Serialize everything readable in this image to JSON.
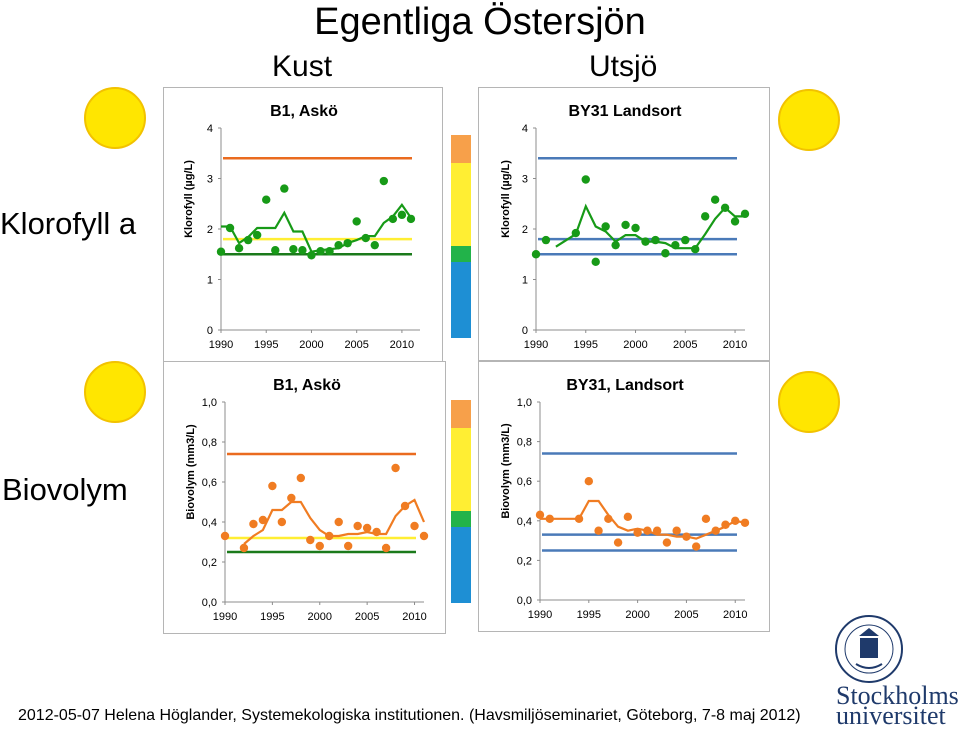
{
  "title": "Egentliga Östersjön",
  "coast_label": "Kust",
  "offshore_label": "Utsjö",
  "rows": {
    "chlorophyll": "Klorofyll a",
    "biovolume": "Biovolym"
  },
  "status_scale_colors": [
    "#f7a04a",
    "#ffee33",
    "#ffee33",
    "#22b34a",
    "#1e8fd4"
  ],
  "footer_text": "2012-05-07 Helena Höglander, Systemekologiska institutionen. (Havsmiljöseminariet, Göteborg, 7-8 maj 2012)",
  "logo": {
    "line1": "Stockholms",
    "line2": "universitet"
  },
  "chart_data": [
    {
      "type": "scatter",
      "title": "B1, Askö",
      "ylabel": "Klorofyll (µg/L)",
      "xlabel": "",
      "xlim": [
        1990,
        2012
      ],
      "ylim": [
        0,
        4
      ],
      "xticks": [
        "1990",
        "1995",
        "2000",
        "2005",
        "2010"
      ],
      "yticks": [
        "0",
        "1",
        "2",
        "3",
        "4"
      ],
      "points_color": "#179a17",
      "points": [
        [
          1990,
          1.55
        ],
        [
          1991,
          2.02
        ],
        [
          1992,
          1.62
        ],
        [
          1993,
          1.78
        ],
        [
          1994,
          1.88
        ],
        [
          1995,
          2.58
        ],
        [
          1996,
          1.58
        ],
        [
          1997,
          2.8
        ],
        [
          1998,
          1.6
        ],
        [
          1999,
          1.58
        ],
        [
          2000,
          1.48
        ],
        [
          2001,
          1.56
        ],
        [
          2002,
          1.56
        ],
        [
          2003,
          1.68
        ],
        [
          2004,
          1.72
        ],
        [
          2005,
          2.15
        ],
        [
          2006,
          1.82
        ],
        [
          2007,
          1.68
        ],
        [
          2008,
          2.95
        ],
        [
          2009,
          2.2
        ],
        [
          2010,
          2.28
        ],
        [
          2011,
          2.2
        ]
      ],
      "trend_color": "#179a17",
      "trend": [
        [
          1990,
          2.05
        ],
        [
          1991,
          2.05
        ],
        [
          1992,
          1.72
        ],
        [
          1993,
          1.84
        ],
        [
          1994,
          2.02
        ],
        [
          1995,
          2.02
        ],
        [
          1996,
          2.02
        ],
        [
          1997,
          2.32
        ],
        [
          1998,
          1.95
        ],
        [
          1999,
          1.95
        ],
        [
          2000,
          1.55
        ],
        [
          2001,
          1.58
        ],
        [
          2002,
          1.6
        ],
        [
          2003,
          1.62
        ],
        [
          2004,
          1.72
        ],
        [
          2005,
          1.78
        ],
        [
          2006,
          1.86
        ],
        [
          2007,
          1.86
        ],
        [
          2008,
          2.12
        ],
        [
          2009,
          2.25
        ],
        [
          2010,
          2.48
        ],
        [
          2011,
          2.22
        ]
      ],
      "reference_lines": [
        {
          "value": 3.4,
          "color": "#ea6b1f"
        },
        {
          "value": 1.8,
          "color": "#ffee33"
        },
        {
          "value": 1.5,
          "color": "#1b7a1b"
        }
      ],
      "ytick_decimals": 0
    },
    {
      "type": "scatter",
      "title": "BY31 Landsort",
      "ylabel": "Klorofyll (µg/L)",
      "xlabel": "",
      "xlim": [
        1990,
        2011
      ],
      "ylim": [
        0,
        4
      ],
      "xticks": [
        "1990",
        "1995",
        "2000",
        "2005",
        "2010"
      ],
      "yticks": [
        "0",
        "1",
        "2",
        "3",
        "4"
      ],
      "points_color": "#179a17",
      "points": [
        [
          1990,
          1.5
        ],
        [
          1991,
          1.78
        ],
        [
          1994,
          1.92
        ],
        [
          1995,
          2.98
        ],
        [
          1996,
          1.35
        ],
        [
          1997,
          2.05
        ],
        [
          1998,
          1.68
        ],
        [
          1999,
          2.08
        ],
        [
          2000,
          2.02
        ],
        [
          2001,
          1.75
        ],
        [
          2002,
          1.78
        ],
        [
          2003,
          1.52
        ],
        [
          2004,
          1.68
        ],
        [
          2005,
          1.78
        ],
        [
          2006,
          1.6
        ],
        [
          2007,
          2.25
        ],
        [
          2008,
          2.58
        ],
        [
          2009,
          2.42
        ],
        [
          2010,
          2.15
        ],
        [
          2011,
          2.3
        ]
      ],
      "trend_color": "#179a17",
      "trend": [
        [
          1992,
          1.65
        ],
        [
          1994,
          1.9
        ],
        [
          1995,
          2.45
        ],
        [
          1996,
          2.05
        ],
        [
          1997,
          1.95
        ],
        [
          1998,
          1.75
        ],
        [
          1999,
          1.88
        ],
        [
          2000,
          1.88
        ],
        [
          2001,
          1.75
        ],
        [
          2002,
          1.75
        ],
        [
          2003,
          1.72
        ],
        [
          2004,
          1.62
        ],
        [
          2005,
          1.62
        ],
        [
          2006,
          1.62
        ],
        [
          2007,
          1.9
        ],
        [
          2008,
          2.2
        ],
        [
          2009,
          2.42
        ],
        [
          2010,
          2.25
        ],
        [
          2011,
          2.25
        ]
      ],
      "reference_lines": [
        {
          "value": 3.4,
          "color": "#4a7ab8"
        },
        {
          "value": 1.8,
          "color": "#4a7ab8"
        },
        {
          "value": 1.5,
          "color": "#4a7ab8"
        }
      ],
      "ytick_decimals": 0
    },
    {
      "type": "scatter",
      "title": "B1, Askö",
      "ylabel": "Biovolym (mm3/L)",
      "xlabel": "",
      "xlim": [
        1990,
        2011
      ],
      "ylim": [
        0,
        1
      ],
      "xticks": [
        "1990",
        "1995",
        "2000",
        "2005",
        "2010"
      ],
      "yticks": [
        "0,0",
        "0,2",
        "0,4",
        "0,6",
        "0,8",
        "1,0"
      ],
      "points_color": "#f07c22",
      "points": [
        [
          1990,
          0.33
        ],
        [
          1992,
          0.27
        ],
        [
          1993,
          0.39
        ],
        [
          1994,
          0.41
        ],
        [
          1995,
          0.58
        ],
        [
          1996,
          0.4
        ],
        [
          1997,
          0.52
        ],
        [
          1998,
          0.62
        ],
        [
          1999,
          0.31
        ],
        [
          2000,
          0.28
        ],
        [
          2001,
          0.33
        ],
        [
          2002,
          0.4
        ],
        [
          2003,
          0.28
        ],
        [
          2004,
          0.38
        ],
        [
          2005,
          0.37
        ],
        [
          2006,
          0.35
        ],
        [
          2007,
          0.27
        ],
        [
          2008,
          0.67
        ],
        [
          2009,
          0.48
        ],
        [
          2010,
          0.38
        ],
        [
          2011,
          0.33
        ]
      ],
      "trend_color": "#f07c22",
      "trend": [
        [
          1992,
          0.29
        ],
        [
          1993,
          0.33
        ],
        [
          1994,
          0.36
        ],
        [
          1995,
          0.46
        ],
        [
          1996,
          0.46
        ],
        [
          1997,
          0.5
        ],
        [
          1998,
          0.5
        ],
        [
          1999,
          0.42
        ],
        [
          2000,
          0.36
        ],
        [
          2001,
          0.33
        ],
        [
          2002,
          0.33
        ],
        [
          2003,
          0.34
        ],
        [
          2004,
          0.34
        ],
        [
          2005,
          0.35
        ],
        [
          2006,
          0.34
        ],
        [
          2007,
          0.34
        ],
        [
          2008,
          0.43
        ],
        [
          2009,
          0.48
        ],
        [
          2010,
          0.51
        ],
        [
          2011,
          0.4
        ]
      ],
      "reference_lines": [
        {
          "value": 0.74,
          "color": "#ea6b1f"
        },
        {
          "value": 0.32,
          "color": "#ffee33"
        },
        {
          "value": 0.25,
          "color": "#1b7a1b"
        }
      ],
      "ytick_decimals": 1
    },
    {
      "type": "scatter",
      "title": "BY31, Landsort",
      "ylabel": "Biovolym (mm3/L)",
      "xlabel": "",
      "xlim": [
        1990,
        2011
      ],
      "ylim": [
        0,
        1
      ],
      "xticks": [
        "1990",
        "1995",
        "2000",
        "2005",
        "2010"
      ],
      "yticks": [
        "0,0",
        "0,2",
        "0,4",
        "0,6",
        "0,8",
        "1,0"
      ],
      "points_color": "#f07c22",
      "points": [
        [
          1990,
          0.43
        ],
        [
          1991,
          0.41
        ],
        [
          1994,
          0.41
        ],
        [
          1995,
          0.6
        ],
        [
          1996,
          0.35
        ],
        [
          1997,
          0.41
        ],
        [
          1998,
          0.29
        ],
        [
          1999,
          0.42
        ],
        [
          2000,
          0.34
        ],
        [
          2001,
          0.35
        ],
        [
          2002,
          0.35
        ],
        [
          2003,
          0.29
        ],
        [
          2004,
          0.35
        ],
        [
          2005,
          0.32
        ],
        [
          2006,
          0.27
        ],
        [
          2007,
          0.41
        ],
        [
          2008,
          0.35
        ],
        [
          2009,
          0.38
        ],
        [
          2010,
          0.4
        ],
        [
          2011,
          0.39
        ]
      ],
      "trend_color": "#f07c22",
      "trend": [
        [
          1990,
          0.41
        ],
        [
          1993,
          0.41
        ],
        [
          1994,
          0.41
        ],
        [
          1995,
          0.5
        ],
        [
          1996,
          0.5
        ],
        [
          1997,
          0.43
        ],
        [
          1998,
          0.37
        ],
        [
          1999,
          0.35
        ],
        [
          2000,
          0.36
        ],
        [
          2001,
          0.35
        ],
        [
          2002,
          0.33
        ],
        [
          2003,
          0.33
        ],
        [
          2004,
          0.32
        ],
        [
          2005,
          0.32
        ],
        [
          2006,
          0.31
        ],
        [
          2007,
          0.33
        ],
        [
          2008,
          0.35
        ],
        [
          2009,
          0.37
        ],
        [
          2010,
          0.4
        ],
        [
          2011,
          0.39
        ]
      ],
      "reference_lines": [
        {
          "value": 0.74,
          "color": "#4a7ab8"
        },
        {
          "value": 0.33,
          "color": "#4a7ab8"
        },
        {
          "value": 0.25,
          "color": "#4a7ab8"
        }
      ],
      "ytick_decimals": 1
    }
  ]
}
